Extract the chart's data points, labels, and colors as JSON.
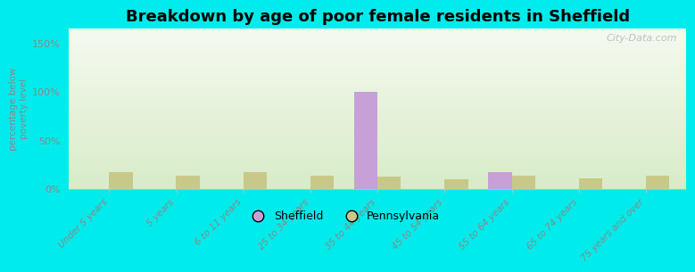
{
  "title": "Breakdown by age of poor female residents in Sheffield",
  "categories": [
    "Under 5 years",
    "5 years",
    "6 to 11 years",
    "25 to 34 years",
    "35 to 44 years",
    "45 to 54 years",
    "55 to 64 years",
    "65 to 74 years",
    "75 years and over"
  ],
  "sheffield_values": [
    0,
    0,
    0,
    0,
    100,
    0,
    18,
    0,
    0
  ],
  "pennsylvania_values": [
    18,
    14,
    18,
    14,
    13,
    10,
    14,
    11,
    14
  ],
  "sheffield_color": "#c8a0d8",
  "pennsylvania_color": "#c8c888",
  "background_color": "#00ecec",
  "ylabel": "percentage below\npoverty level",
  "ylim": [
    0,
    165
  ],
  "yticks": [
    0,
    50,
    100,
    150
  ],
  "ytick_labels": [
    "0%",
    "50%",
    "100%",
    "150%"
  ],
  "bar_width": 0.35,
  "title_fontsize": 13,
  "legend_labels": [
    "Sheffield",
    "Pennsylvania"
  ],
  "watermark": "City-Data.com",
  "grad_top": "#f5faf0",
  "grad_bottom": "#d8ecc8"
}
